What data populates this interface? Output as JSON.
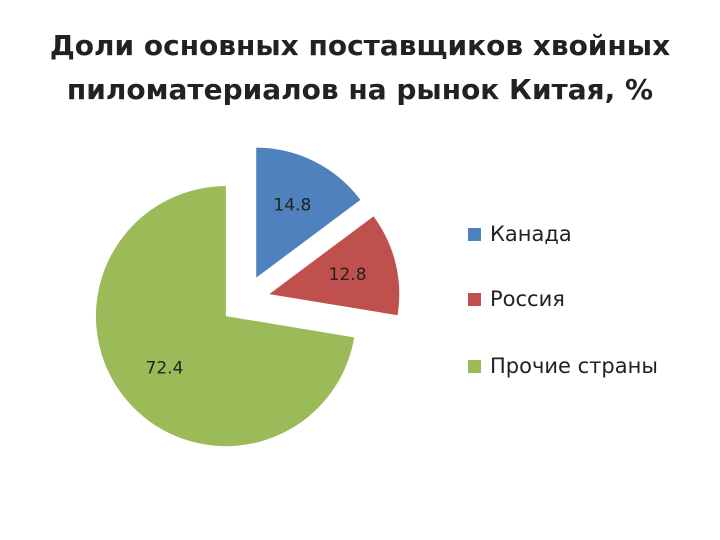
{
  "chart_data": {
    "type": "pie",
    "title": "Доли основных поставщиков хвойных пиломатериалов на рынок Китая, %",
    "categories": [
      "Канада",
      "Россия",
      "Прочие страны"
    ],
    "values": [
      14.8,
      12.8,
      72.4
    ],
    "colors": [
      "#4f81bd",
      "#c0504d",
      "#9bbb59"
    ],
    "legend": "right"
  }
}
